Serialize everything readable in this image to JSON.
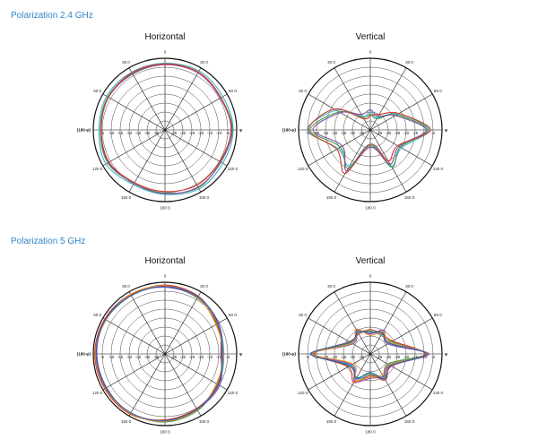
{
  "sections": [
    {
      "title": "Polarization 2.4 GHz"
    },
    {
      "title": "Polarization 5 GHz"
    }
  ],
  "chart_data": [
    {
      "type": "polar-line",
      "title": "Horizontal",
      "section": "Polarization 2.4 GHz",
      "angle_ticks": [
        "0",
        "30 0",
        "60 0",
        "90 0",
        "120 0",
        "150 0",
        "180 0",
        "150 0",
        "120 0",
        "90 0",
        "60 0",
        "30 0"
      ],
      "angle_axis_labels": {
        "left": "(180-φ)",
        "right": "φ"
      },
      "radial_ticks": [
        "-5",
        "-10",
        "-15",
        "-20",
        "-25",
        "-30",
        "-35"
      ],
      "rmax": 1,
      "series": [
        {
          "color": "#3fb3c3",
          "r": [
            0.93,
            0.95,
            0.93,
            0.95,
            0.93,
            0.95,
            0.9,
            0.88,
            0.95,
            0.92,
            0.94,
            0.93
          ]
        },
        {
          "color": "#3a9a4a",
          "r": [
            0.92,
            0.93,
            0.9,
            0.94,
            0.89,
            0.93,
            0.88,
            0.86,
            0.92,
            0.9,
            0.92,
            0.91
          ]
        },
        {
          "color": "#8a4fa3",
          "r": [
            0.91,
            0.92,
            0.89,
            0.93,
            0.9,
            0.92,
            0.89,
            0.86,
            0.91,
            0.89,
            0.91,
            0.9
          ]
        },
        {
          "color": "#d33a2c",
          "r": [
            0.92,
            0.93,
            0.9,
            0.92,
            0.88,
            0.89,
            0.86,
            0.85,
            0.9,
            0.89,
            0.91,
            0.92
          ]
        }
      ]
    },
    {
      "type": "polar-line",
      "title": "Vertical",
      "section": "Polarization 2.4 GHz",
      "angle_ticks": [
        "0",
        "30 0",
        "60 0",
        "90 0",
        "120 0",
        "150 0",
        "180 0",
        "150 0",
        "120 0",
        "90 0",
        "60 0",
        "30 0"
      ],
      "angle_axis_labels": {
        "left": "(180-φ)",
        "right": "φ"
      },
      "radial_ticks": [
        "-5",
        "-10",
        "-15",
        "-20",
        "-25",
        "-30",
        "-35"
      ],
      "rmax": 1,
      "series": [
        {
          "color": "#3fb3c3",
          "r": [
            0.25,
            0.2,
            0.45,
            0.82,
            0.5,
            0.58,
            0.2,
            0.58,
            0.52,
            0.88,
            0.55,
            0.22
          ]
        },
        {
          "color": "#3a9a4a",
          "r": [
            0.22,
            0.18,
            0.42,
            0.8,
            0.48,
            0.6,
            0.22,
            0.62,
            0.48,
            0.84,
            0.5,
            0.2
          ]
        },
        {
          "color": "#8a4fa3",
          "r": [
            0.28,
            0.22,
            0.4,
            0.78,
            0.46,
            0.55,
            0.24,
            0.66,
            0.45,
            0.8,
            0.48,
            0.25
          ]
        },
        {
          "color": "#d33a2c",
          "r": [
            0.2,
            0.25,
            0.46,
            0.84,
            0.44,
            0.5,
            0.2,
            0.7,
            0.54,
            0.86,
            0.58,
            0.18
          ]
        }
      ]
    },
    {
      "type": "polar-line",
      "title": "Horizontal",
      "section": "Polarization 5 GHz",
      "angle_ticks": [
        "0",
        "30 0",
        "60 0",
        "90 0",
        "120 0",
        "150 0",
        "180 0",
        "150 0",
        "120 0",
        "90 0",
        "60 0",
        "30 0"
      ],
      "angle_axis_labels": {
        "left": "(180-φ)",
        "right": "φ"
      },
      "radial_ticks": [
        "-5",
        "-10",
        "-15",
        "-20",
        "-25",
        "-30",
        "-35"
      ],
      "rmax": 1,
      "series": [
        {
          "color": "#3fb3c3",
          "r": [
            0.95,
            0.92,
            0.85,
            0.82,
            0.86,
            0.9,
            0.94,
            0.96,
            0.95,
            0.97,
            0.96,
            0.95
          ]
        },
        {
          "color": "#3a9a4a",
          "r": [
            0.94,
            0.9,
            0.83,
            0.8,
            0.84,
            0.91,
            0.95,
            0.95,
            0.96,
            0.96,
            0.95,
            0.94
          ]
        },
        {
          "color": "#8a4fa3",
          "r": [
            0.93,
            0.91,
            0.86,
            0.78,
            0.88,
            0.89,
            0.93,
            0.96,
            0.94,
            0.95,
            0.97,
            0.96
          ]
        },
        {
          "color": "#d33a2c",
          "r": [
            0.96,
            0.93,
            0.84,
            0.79,
            0.85,
            0.88,
            0.92,
            0.97,
            0.97,
            0.98,
            0.97,
            0.95
          ]
        },
        {
          "color": "#e38a2a",
          "r": [
            0.95,
            0.91,
            0.82,
            0.81,
            0.83,
            0.9,
            0.94,
            0.96,
            0.96,
            0.97,
            0.95,
            0.96
          ]
        },
        {
          "color": "#2f5fb5",
          "r": [
            0.94,
            0.92,
            0.86,
            0.8,
            0.86,
            0.89,
            0.93,
            0.95,
            0.95,
            0.96,
            0.96,
            0.94
          ]
        }
      ]
    },
    {
      "type": "polar-line",
      "title": "Vertical",
      "section": "Polarization 5 GHz",
      "angle_ticks": [
        "0",
        "30 0",
        "60 0",
        "90 0",
        "120 0",
        "150 0",
        "180 0",
        "150 0",
        "120 0",
        "90 0",
        "60 0",
        "30 0"
      ],
      "angle_axis_labels": {
        "left": "(180-φ)",
        "right": "φ"
      },
      "radial_ticks": [
        "-5",
        "-10",
        "-15",
        "-20",
        "-25",
        "-30",
        "-35"
      ],
      "rmax": 1,
      "series": [
        {
          "color": "#3fb3c3",
          "r": [
            0.3,
            0.35,
            0.3,
            0.8,
            0.3,
            0.38,
            0.3,
            0.4,
            0.32,
            0.82,
            0.3,
            0.36
          ]
        },
        {
          "color": "#3a9a4a",
          "r": [
            0.32,
            0.3,
            0.34,
            0.78,
            0.28,
            0.4,
            0.28,
            0.38,
            0.34,
            0.8,
            0.32,
            0.34
          ]
        },
        {
          "color": "#8a4fa3",
          "r": [
            0.28,
            0.38,
            0.28,
            0.82,
            0.32,
            0.36,
            0.34,
            0.44,
            0.3,
            0.84,
            0.28,
            0.38
          ]
        },
        {
          "color": "#d33a2c",
          "r": [
            0.34,
            0.32,
            0.36,
            0.76,
            0.34,
            0.42,
            0.3,
            0.46,
            0.36,
            0.78,
            0.34,
            0.32
          ]
        },
        {
          "color": "#e38a2a",
          "r": [
            0.26,
            0.36,
            0.32,
            0.8,
            0.3,
            0.34,
            0.32,
            0.42,
            0.28,
            0.81,
            0.3,
            0.4
          ]
        },
        {
          "color": "#2f5fb5",
          "r": [
            0.3,
            0.34,
            0.3,
            0.79,
            0.33,
            0.4,
            0.26,
            0.4,
            0.33,
            0.83,
            0.33,
            0.35
          ]
        }
      ]
    }
  ]
}
